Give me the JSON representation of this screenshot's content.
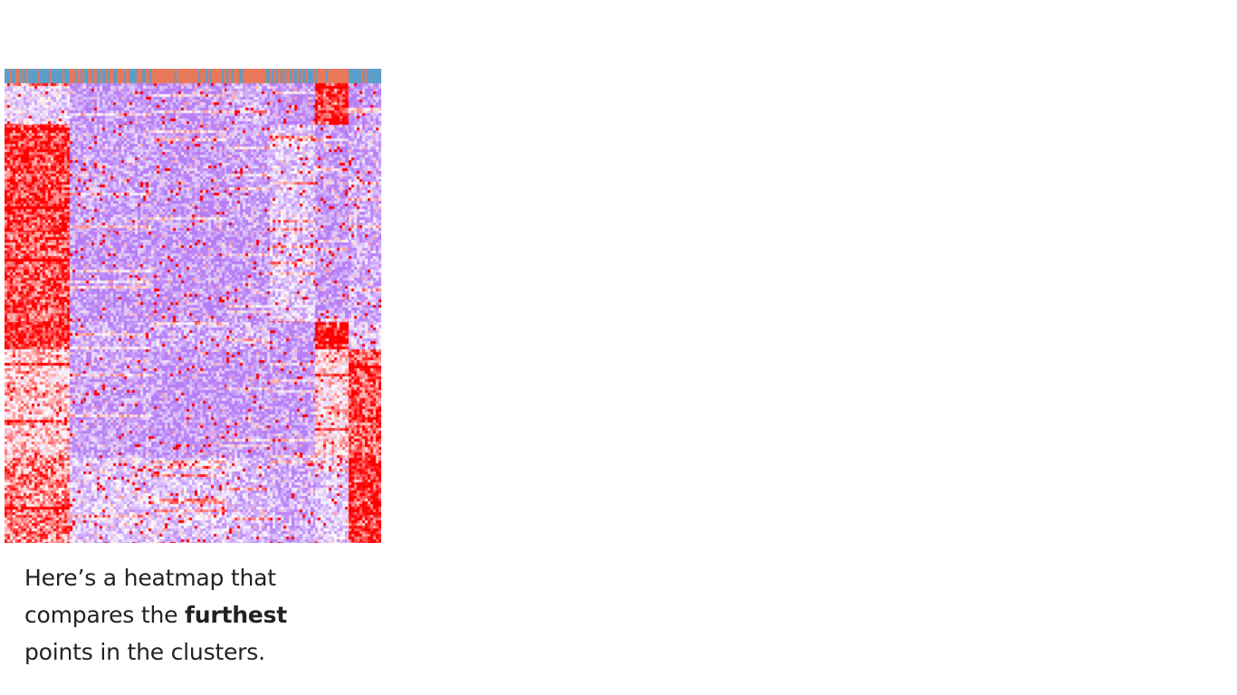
{
  "slide": {
    "caption": {
      "before": "Here’s a heatmap that compares the ",
      "bold": "furthest",
      "after": " points in the clusters."
    }
  },
  "colors": {
    "background": "#ffffff",
    "low": "#b57cf6",
    "mid": "#ffffff",
    "high": "#ff0000",
    "annotation_blue": "#5a9ec9",
    "annotation_orange": "#e8785a"
  },
  "chart_data": {
    "type": "heatmap",
    "title": "",
    "xlabel": "",
    "ylabel": "",
    "color_scale": [
      "#b57cf6",
      "#ffffff",
      "#ff0000"
    ],
    "column_annotation": [
      "blue",
      "orange-blue",
      "orange",
      "orange",
      "blue-orange",
      "orange",
      "blue"
    ],
    "column_groups": [
      "group1",
      "group2",
      "group3",
      "group4",
      "group5",
      "group6",
      "group7"
    ],
    "row_groups": [
      "block1",
      "block2",
      "block3",
      "block4",
      "block5",
      "block6"
    ],
    "block_levels": [
      [
        0.35,
        0.1,
        0.1,
        0.2,
        0.05,
        0.95,
        0.1
      ],
      [
        0.9,
        0.15,
        0.1,
        0.15,
        0.3,
        0.1,
        0.2
      ],
      [
        0.85,
        0.1,
        0.1,
        0.1,
        0.3,
        0.1,
        0.2
      ],
      [
        0.95,
        0.15,
        0.2,
        0.2,
        0.1,
        1.0,
        0.3
      ],
      [
        0.6,
        0.15,
        0.1,
        0.1,
        0.1,
        0.55,
        0.85
      ],
      [
        0.75,
        0.3,
        0.3,
        0.25,
        0.2,
        0.3,
        0.95
      ]
    ]
  }
}
